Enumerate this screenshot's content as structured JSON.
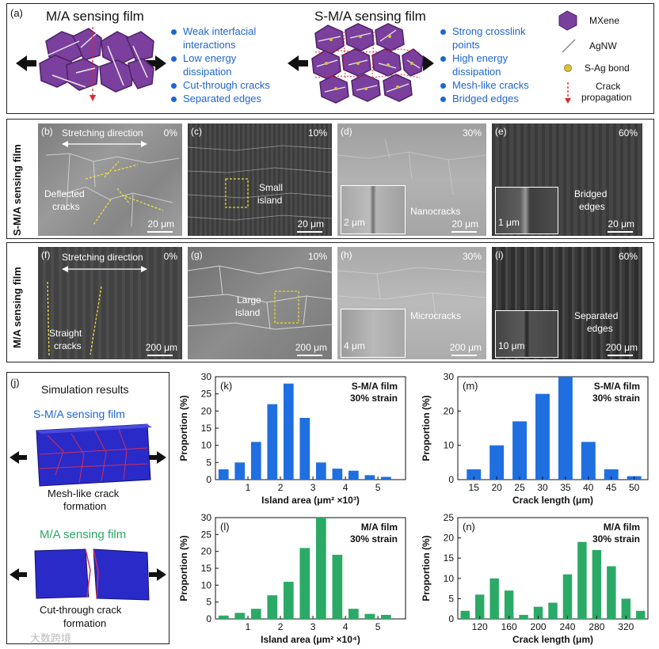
{
  "panel_a": {
    "label": "(a)",
    "left_title": "M/A sensing film",
    "right_title": "S-M/A sensing film",
    "left_bullets": [
      "Weak interfacial",
      "interactions",
      "Low energy",
      "dissipation",
      "Cut-through cracks",
      "Separated edges"
    ],
    "right_bullets": [
      "Strong crosslink",
      "points",
      "High energy",
      "dissipation",
      "Mesh-like cracks",
      "Bridged edges"
    ],
    "legend": {
      "mxene": "MXene",
      "agnw": "AgNW",
      "sag": "S-Ag bond",
      "crack1": "Crack",
      "crack2": "propagation"
    },
    "colors": {
      "hex": "#7b3f9e",
      "hex_dark": "#4e2266",
      "crack": "#e0262b",
      "bullet": "#1f66d0"
    }
  },
  "sem_top": {
    "row_label": "S-M/A sensing film",
    "b": {
      "label": "(b)",
      "strain": "0%",
      "stretch": "Stretching direction",
      "annot": [
        "Deflected",
        "cracks"
      ],
      "scale": "20 μm"
    },
    "c": {
      "label": "(c)",
      "strain": "10%",
      "annot": [
        "Small",
        "island"
      ],
      "scale": "20 μm"
    },
    "d": {
      "label": "(d)",
      "strain": "30%",
      "annot": "Nanocracks",
      "inset_scale": "2 μm",
      "scale": "20 μm"
    },
    "e": {
      "label": "(e)",
      "strain": "60%",
      "annot": [
        "Bridged",
        "edges"
      ],
      "inset_scale": "1 μm",
      "scale": "20 μm"
    }
  },
  "sem_bottom": {
    "row_label": "M/A sensing film",
    "f": {
      "label": "(f)",
      "strain": "0%",
      "stretch": "Stretching direction",
      "annot": [
        "Straight",
        "cracks"
      ],
      "scale": "200 μm"
    },
    "g": {
      "label": "(g)",
      "strain": "10%",
      "annot": [
        "Large",
        "island"
      ],
      "scale": "200 μm"
    },
    "h": {
      "label": "(h)",
      "strain": "30%",
      "annot": "Microcracks",
      "inset_scale": "4 μm",
      "scale": "200 μm"
    },
    "i": {
      "label": "(i)",
      "strain": "60%",
      "annot": [
        "Separated",
        "edges"
      ],
      "inset_scale": "10 μm",
      "scale": "200 μm"
    }
  },
  "panel_j": {
    "label": "(j)",
    "title": "Simulation results",
    "smA_title": "S-M/A sensing film",
    "smA_caption": [
      "Mesh-like crack",
      "formation"
    ],
    "mA_title": "M/A sensing film",
    "mA_caption": [
      "Cut-through crack",
      "formation"
    ]
  },
  "watermark": "大数跨境",
  "chart_data": [
    {
      "id": "k",
      "label": "(k)",
      "type": "bar",
      "title": [
        "S-M/A film",
        "30% strain"
      ],
      "xlabel": "Island area (μm² ×10³)",
      "ylabel": "Proportion (%)",
      "x": [
        0.25,
        0.75,
        1.25,
        1.75,
        2.25,
        2.75,
        3.25,
        3.75,
        4.25,
        4.75,
        5.25,
        5.75
      ],
      "values": [
        3,
        5,
        11,
        22,
        28,
        18,
        5,
        3.2,
        2.6,
        1.3,
        0.8,
        0
      ],
      "xlim": [
        0,
        5.85
      ],
      "ylim": [
        0,
        30
      ],
      "xticks": [
        1,
        2,
        3,
        4,
        5
      ],
      "yticks": [
        0,
        5,
        10,
        15,
        20,
        25,
        30
      ],
      "color": "#1f6fe0"
    },
    {
      "id": "m",
      "label": "(m)",
      "type": "bar",
      "title": [
        "S-M/A film",
        "30% strain"
      ],
      "xlabel": "Crack length (μm)",
      "ylabel": "Proportion (%)",
      "x": [
        15,
        20,
        25,
        30,
        35,
        40,
        45,
        50
      ],
      "values": [
        3,
        10,
        17,
        25,
        30,
        11,
        3,
        1
      ],
      "xlim": [
        11.5,
        53
      ],
      "ylim": [
        0,
        30
      ],
      "xticks": [
        15,
        20,
        25,
        30,
        35,
        40,
        45,
        50
      ],
      "yticks": [
        0,
        10,
        20,
        30
      ],
      "color": "#1f6fe0"
    },
    {
      "id": "l",
      "label": "(l)",
      "type": "bar",
      "title": [
        "M/A film",
        "30% strain"
      ],
      "xlabel": "Island area (μm² ×10⁴)",
      "ylabel": "Proportion (%)",
      "x": [
        0.25,
        0.75,
        1.25,
        1.75,
        2.25,
        2.75,
        3.25,
        3.75,
        4.25,
        4.75,
        5.25,
        5.75
      ],
      "values": [
        1,
        1.8,
        3,
        7,
        11,
        21,
        30,
        19,
        3,
        1.5,
        1.2,
        0
      ],
      "xlim": [
        0,
        5.85
      ],
      "ylim": [
        0,
        30
      ],
      "xticks": [
        1,
        2,
        3,
        4,
        5
      ],
      "yticks": [
        0,
        5,
        10,
        15,
        20,
        25,
        30
      ],
      "color": "#2aaa66"
    },
    {
      "id": "n",
      "label": "(n)",
      "type": "bar",
      "title": [
        "M/A film",
        "30% strain"
      ],
      "xlabel": "Crack length (μm)",
      "ylabel": "Proportion (%)",
      "x": [
        100,
        120,
        140,
        160,
        180,
        200,
        220,
        240,
        260,
        280,
        300,
        320,
        340
      ],
      "values": [
        2,
        6,
        10,
        7,
        1,
        3,
        4,
        11,
        19,
        17,
        13,
        5,
        2
      ],
      "xlim": [
        90,
        350
      ],
      "ylim": [
        0,
        25
      ],
      "xticks": [
        120,
        160,
        200,
        240,
        280,
        320
      ],
      "yticks": [
        0,
        5,
        10,
        15,
        20,
        25
      ],
      "color": "#2aaa66"
    }
  ]
}
